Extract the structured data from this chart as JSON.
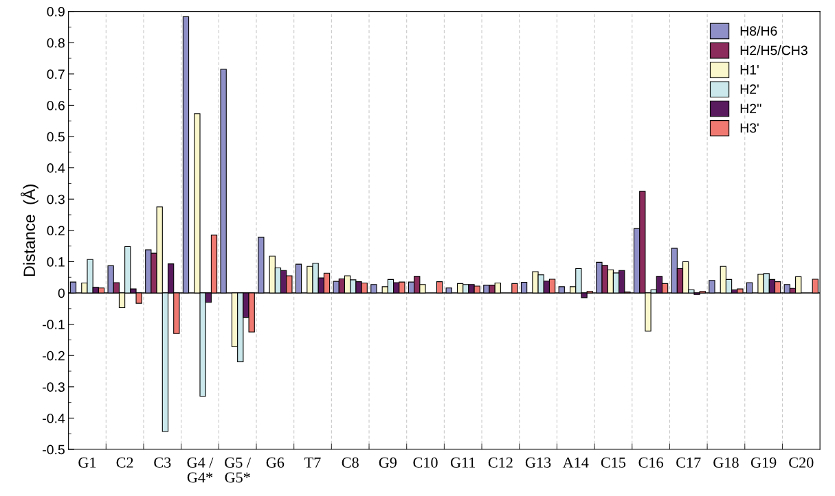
{
  "chart_data": {
    "type": "bar",
    "ylabel": "Distance  (Å)",
    "categories": [
      "G1",
      "C2",
      "C3",
      "G4 /\nG4*",
      "G5 /\nG5*",
      "G6",
      "T7",
      "C8",
      "G9",
      "C10",
      "G11",
      "C12",
      "G13",
      "A14",
      "C15",
      "C16",
      "C17",
      "G18",
      "G19",
      "C20"
    ],
    "series": [
      {
        "name": "H8/H6",
        "color": "#9090c8",
        "values": [
          0.035,
          0.087,
          0.138,
          0.883,
          0.715,
          0.178,
          0.092,
          0.037,
          0.027,
          0.035,
          0.016,
          0.025,
          0.034,
          0.02,
          0.098,
          0.206,
          0.143,
          0.04,
          0.033,
          0.027
        ]
      },
      {
        "name": "H2/H5/CH3",
        "color": "#8b2c5c",
        "values": [
          null,
          0.033,
          0.127,
          null,
          null,
          null,
          null,
          0.045,
          null,
          0.053,
          null,
          0.025,
          null,
          null,
          0.088,
          0.325,
          0.078,
          null,
          null,
          0.015
        ]
      },
      {
        "name": "H1'",
        "color": "#fbf7cc",
        "values": [
          0.032,
          -0.047,
          0.275,
          0.573,
          -0.172,
          0.118,
          0.085,
          0.055,
          0.02,
          0.027,
          0.03,
          0.032,
          0.068,
          0.02,
          0.074,
          -0.122,
          0.1,
          0.085,
          0.06,
          0.052
        ]
      },
      {
        "name": "H2'",
        "color": "#cbe9ec",
        "values": [
          0.107,
          0.148,
          -0.443,
          -0.33,
          -0.22,
          0.08,
          0.095,
          0.042,
          0.043,
          null,
          0.027,
          null,
          0.058,
          0.078,
          0.064,
          0.01,
          0.01,
          0.043,
          0.062,
          null
        ]
      },
      {
        "name": "H2''",
        "color": "#5a1a5e",
        "values": [
          0.018,
          0.013,
          0.093,
          -0.03,
          -0.078,
          0.072,
          0.048,
          0.036,
          0.033,
          null,
          0.027,
          null,
          0.038,
          -0.015,
          0.072,
          0.053,
          -0.005,
          0.01,
          0.043,
          null
        ]
      },
      {
        "name": "H3'",
        "color": "#f07a72",
        "values": [
          0.016,
          -0.033,
          -0.13,
          0.185,
          -0.125,
          0.055,
          0.063,
          0.032,
          0.035,
          0.036,
          0.022,
          0.03,
          0.044,
          0.005,
          0.003,
          0.03,
          0.005,
          0.013,
          0.036,
          0.044
        ]
      }
    ],
    "ylim": [
      -0.5,
      0.9
    ],
    "yticks": [
      -0.5,
      -0.4,
      -0.3,
      -0.2,
      -0.1,
      0,
      0.1,
      0.2,
      0.3,
      0.4,
      0.5,
      0.6,
      0.7,
      0.8,
      0.9
    ],
    "grid": "x",
    "legend": "top right"
  }
}
